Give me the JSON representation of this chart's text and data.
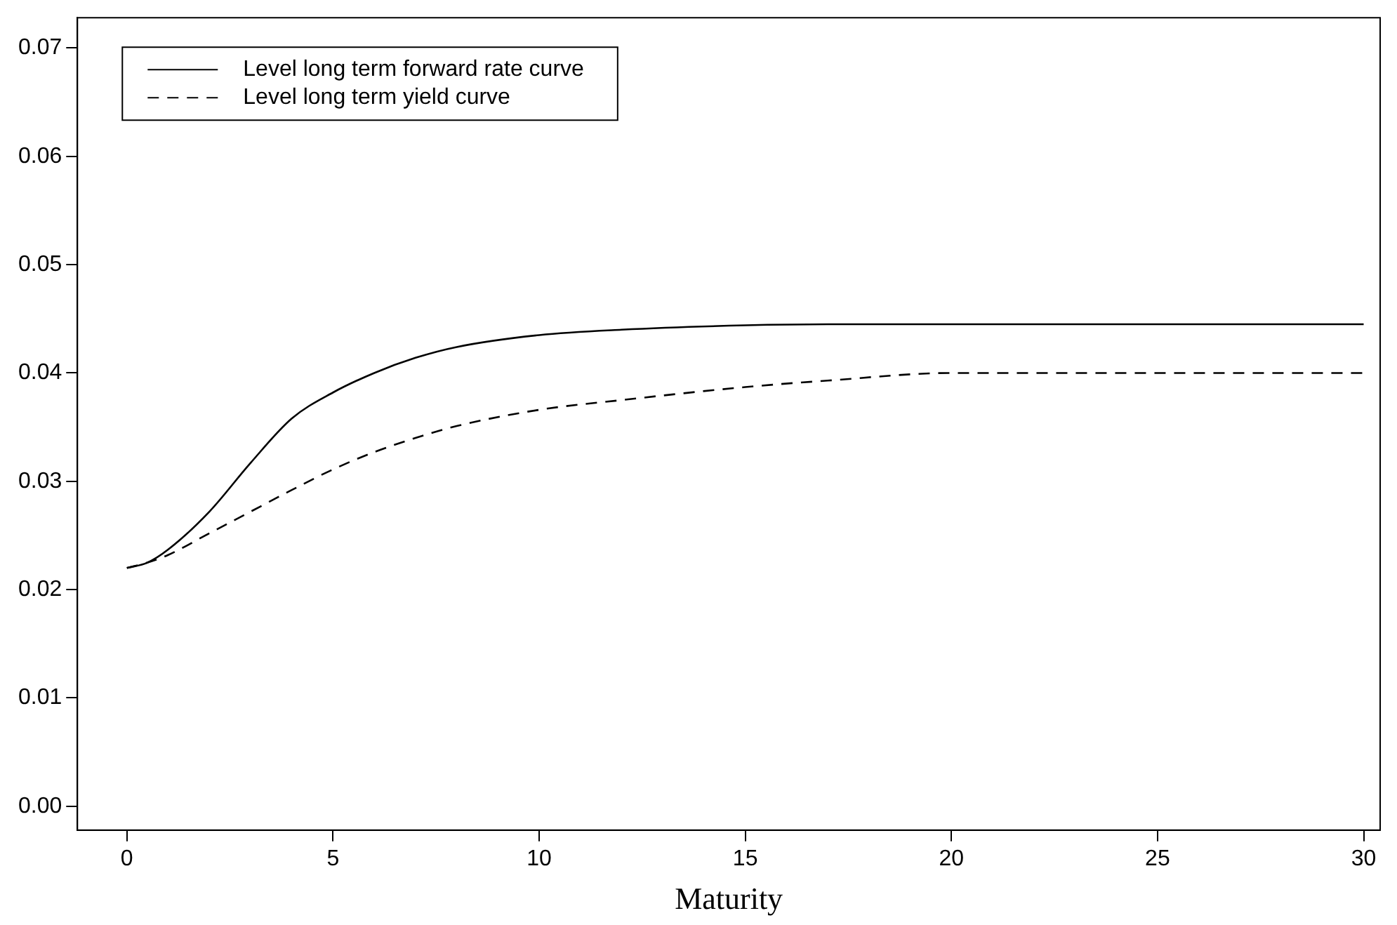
{
  "chart_data": {
    "type": "line",
    "xlabel": "Maturity",
    "xlim": [
      -1.2,
      30.4
    ],
    "xticks": [
      0,
      5,
      10,
      15,
      20,
      25,
      30
    ],
    "ylim": [
      -0.0022,
      0.0728
    ],
    "yticks": [
      {
        "value": 0,
        "label": "0.00"
      },
      {
        "value": 0.01,
        "label": "0.01"
      },
      {
        "value": 0.02,
        "label": "0.02"
      },
      {
        "value": 0.03,
        "label": "0.03"
      },
      {
        "value": 0.04,
        "label": "0.04"
      },
      {
        "value": 0.05,
        "label": "0.05"
      },
      {
        "value": 0.06,
        "label": "0.06"
      },
      {
        "value": 0.07,
        "label": "0.07"
      }
    ],
    "grid": false,
    "legend": "top left",
    "marker": "none",
    "x": [
      0,
      0.5,
      1,
      2,
      3,
      4,
      5,
      6,
      7,
      8,
      10,
      12,
      15,
      17,
      20,
      25,
      30
    ],
    "series": [
      {
        "name": "Level long term forward rate curve",
        "color": "#000000",
        "line_style": "solid",
        "values": [
          0.022,
          0.0225,
          0.0237,
          0.0272,
          0.0317,
          0.0358,
          0.0382,
          0.04,
          0.0414,
          0.0424,
          0.0435,
          0.044,
          0.0444,
          0.0445,
          0.0445,
          0.0445,
          0.0445
        ]
      },
      {
        "name": "Level long term yield curve",
        "color": "#000000",
        "line_style": "dashed",
        "values": [
          0.022,
          0.0225,
          0.0232,
          0.0252,
          0.0272,
          0.0292,
          0.0311,
          0.0327,
          0.034,
          0.0351,
          0.0366,
          0.0375,
          0.0387,
          0.0393,
          0.04,
          0.04,
          0.04
        ]
      }
    ]
  }
}
